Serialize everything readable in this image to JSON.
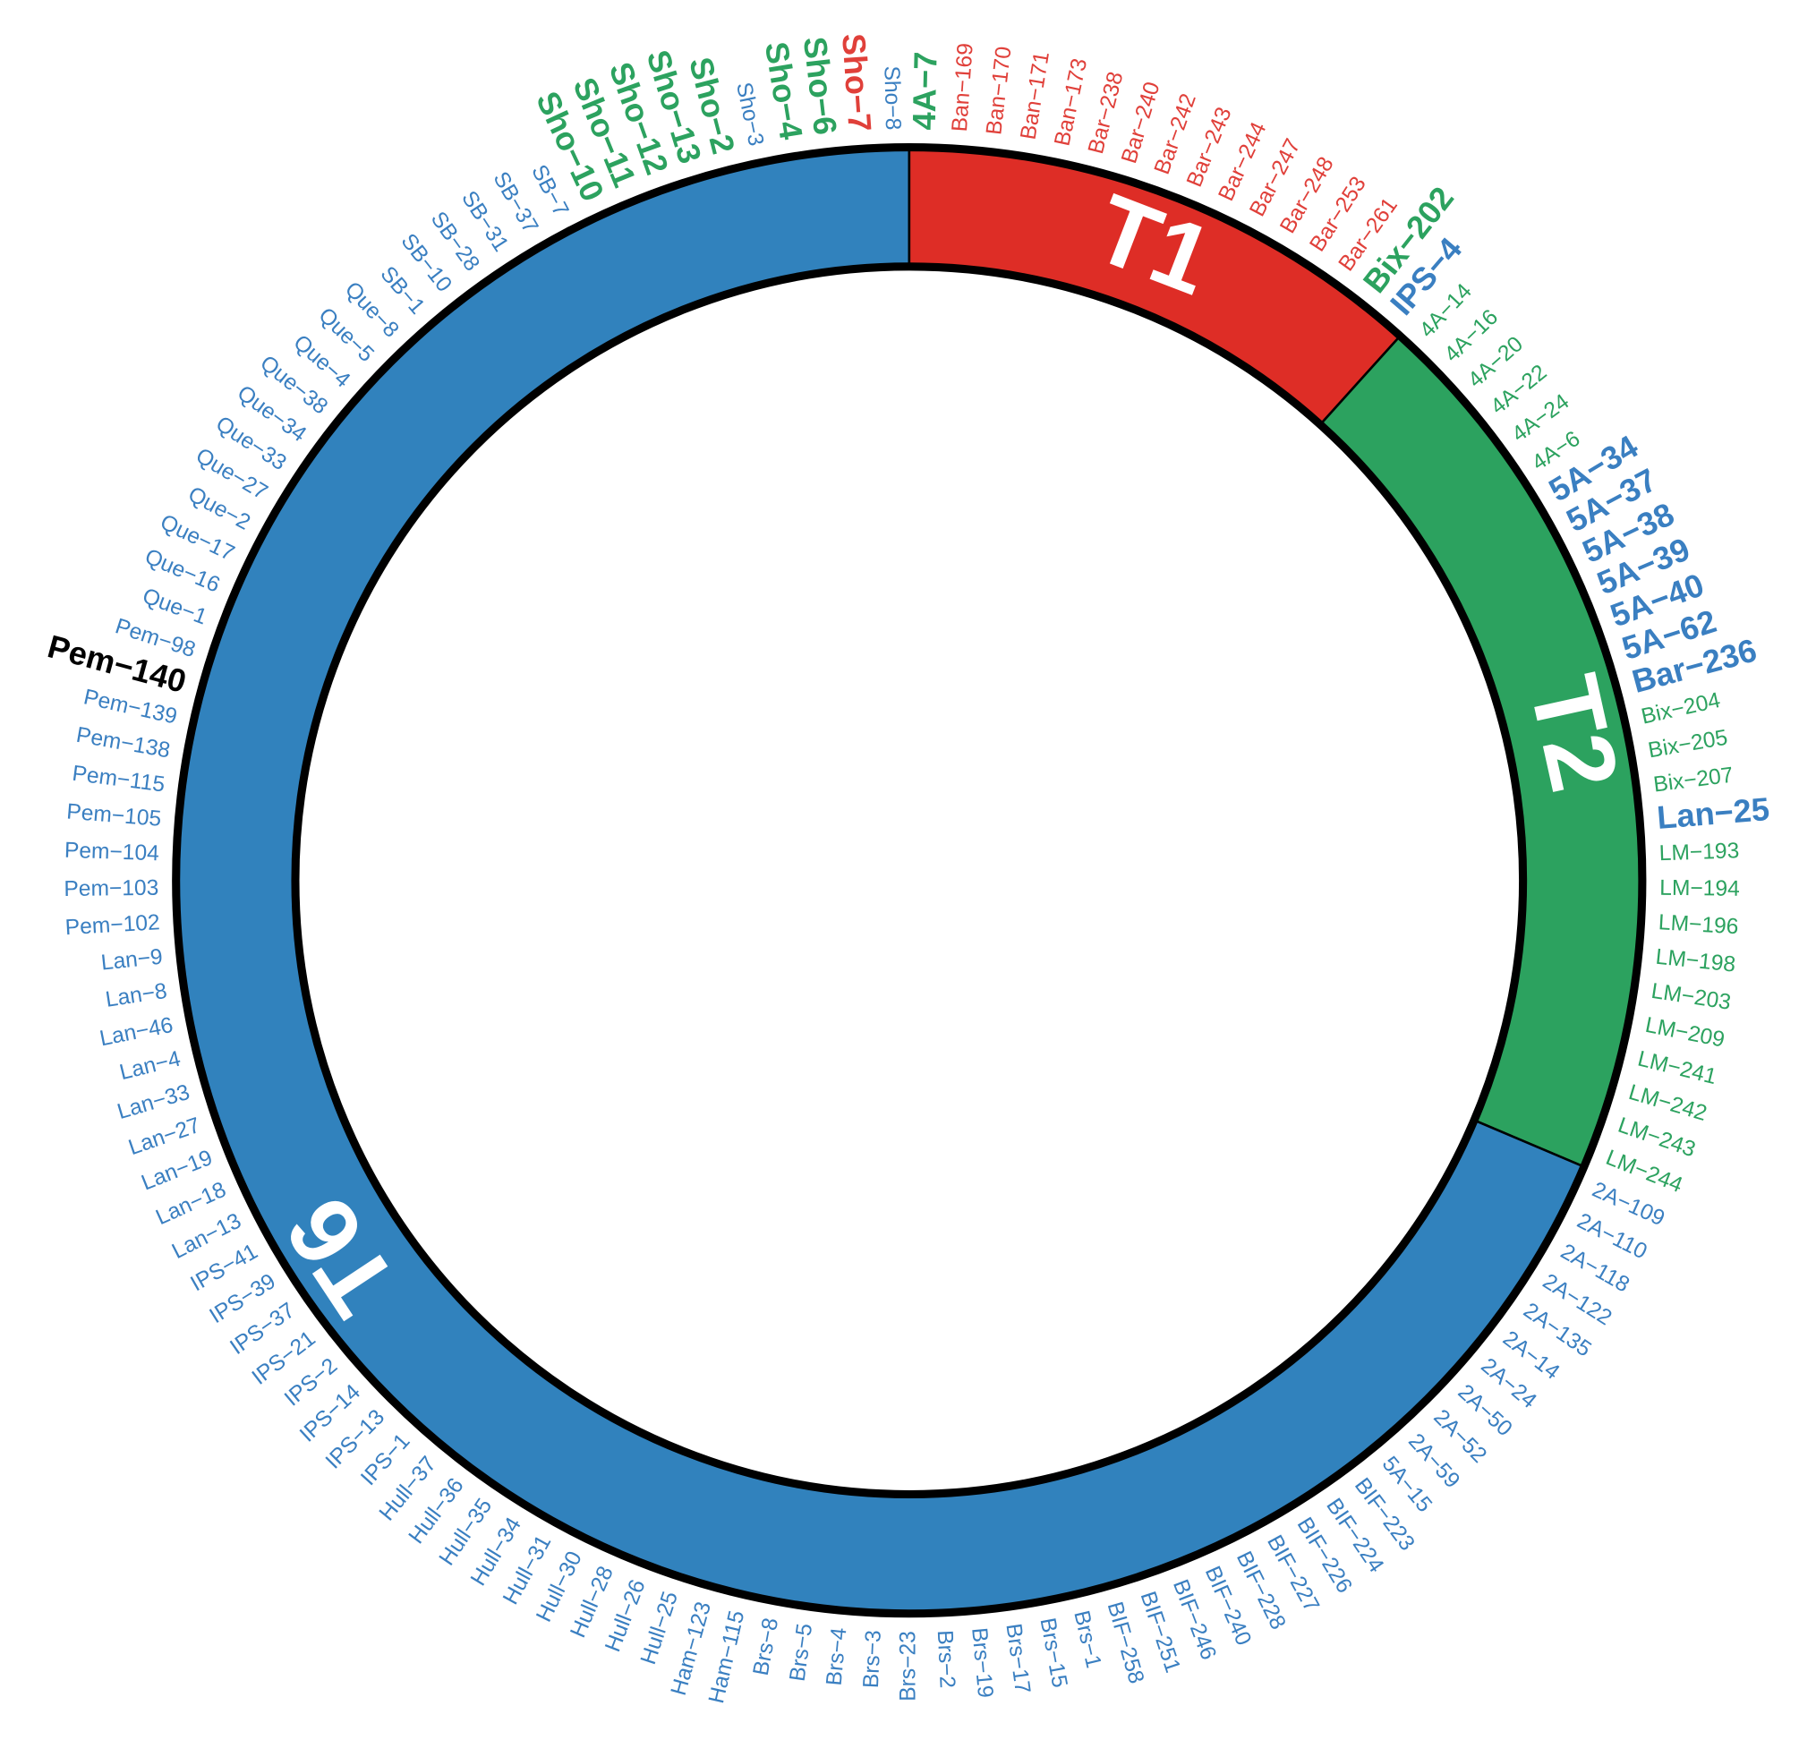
{
  "segments": [
    {
      "name": "T1",
      "color": "#de2d26",
      "leaves": [
        {
          "label": "4A−7",
          "color": "#2ca25f",
          "bold": true
        },
        {
          "label": "Ban−169",
          "color": "#e0403a"
        },
        {
          "label": "Ban−170",
          "color": "#e0403a"
        },
        {
          "label": "Ban−171",
          "color": "#e0403a"
        },
        {
          "label": "Ban−173",
          "color": "#e0403a"
        },
        {
          "label": "Bar−238",
          "color": "#e0403a"
        },
        {
          "label": "Bar−240",
          "color": "#e0403a"
        },
        {
          "label": "Bar−242",
          "color": "#e0403a"
        },
        {
          "label": "Bar−243",
          "color": "#e0403a"
        },
        {
          "label": "Bar−244",
          "color": "#e0403a"
        },
        {
          "label": "Bar−247",
          "color": "#e0403a"
        },
        {
          "label": "Bar−248",
          "color": "#e0403a"
        },
        {
          "label": "Bar−253",
          "color": "#e0403a"
        },
        {
          "label": "Bar−261",
          "color": "#e0403a"
        },
        {
          "label": "Bix−202",
          "color": "#2ca25f",
          "bold": true
        },
        {
          "label": "IPS−4",
          "color": "#3a7fc1",
          "bold": true
        }
      ]
    },
    {
      "name": "T2",
      "color": "#2ca25f",
      "leaves": [
        {
          "label": "4A−14",
          "color": "#2ca25f"
        },
        {
          "label": "4A−16",
          "color": "#2ca25f"
        },
        {
          "label": "4A−20",
          "color": "#2ca25f"
        },
        {
          "label": "4A−22",
          "color": "#2ca25f"
        },
        {
          "label": "4A−24",
          "color": "#2ca25f"
        },
        {
          "label": "4A−6",
          "color": "#2ca25f"
        },
        {
          "label": "5A−34",
          "color": "#3a7fc1",
          "bold": true
        },
        {
          "label": "5A−37",
          "color": "#3a7fc1",
          "bold": true
        },
        {
          "label": "5A−38",
          "color": "#3a7fc1",
          "bold": true
        },
        {
          "label": "5A−39",
          "color": "#3a7fc1",
          "bold": true
        },
        {
          "label": "5A−40",
          "color": "#3a7fc1",
          "bold": true
        },
        {
          "label": "5A−62",
          "color": "#3a7fc1",
          "bold": true
        },
        {
          "label": "Bar−236",
          "color": "#3a7fc1",
          "bold": true
        },
        {
          "label": "Bix−204",
          "color": "#2ca25f"
        },
        {
          "label": "Bix−205",
          "color": "#2ca25f"
        },
        {
          "label": "Bix−207",
          "color": "#2ca25f"
        },
        {
          "label": "Lan−25",
          "color": "#3a7fc1",
          "bold": true
        },
        {
          "label": "LM−193",
          "color": "#2ca25f"
        },
        {
          "label": "LM−194",
          "color": "#2ca25f"
        },
        {
          "label": "LM−196",
          "color": "#2ca25f"
        },
        {
          "label": "LM−198",
          "color": "#2ca25f"
        },
        {
          "label": "LM−203",
          "color": "#2ca25f"
        },
        {
          "label": "LM−209",
          "color": "#2ca25f"
        },
        {
          "label": "LM−241",
          "color": "#2ca25f"
        },
        {
          "label": "LM−242",
          "color": "#2ca25f"
        },
        {
          "label": "LM−243",
          "color": "#2ca25f"
        },
        {
          "label": "LM−244",
          "color": "#2ca25f"
        }
      ]
    },
    {
      "name": "T6",
      "color": "#3182bd",
      "leaves": [
        {
          "label": "2A−109",
          "color": "#3a7fc1"
        },
        {
          "label": "2A−110",
          "color": "#3a7fc1"
        },
        {
          "label": "2A−118",
          "color": "#3a7fc1"
        },
        {
          "label": "2A−122",
          "color": "#3a7fc1"
        },
        {
          "label": "2A−135",
          "color": "#3a7fc1"
        },
        {
          "label": "2A−14",
          "color": "#3a7fc1"
        },
        {
          "label": "2A−24",
          "color": "#3a7fc1"
        },
        {
          "label": "2A−50",
          "color": "#3a7fc1"
        },
        {
          "label": "2A−52",
          "color": "#3a7fc1"
        },
        {
          "label": "2A−59",
          "color": "#3a7fc1"
        },
        {
          "label": "5A−15",
          "color": "#3a7fc1"
        },
        {
          "label": "BIF−223",
          "color": "#3a7fc1"
        },
        {
          "label": "BIF−224",
          "color": "#3a7fc1"
        },
        {
          "label": "BIF−226",
          "color": "#3a7fc1"
        },
        {
          "label": "BIF−227",
          "color": "#3a7fc1"
        },
        {
          "label": "BIF−228",
          "color": "#3a7fc1"
        },
        {
          "label": "BIF−240",
          "color": "#3a7fc1"
        },
        {
          "label": "BIF−246",
          "color": "#3a7fc1"
        },
        {
          "label": "BIF−251",
          "color": "#3a7fc1"
        },
        {
          "label": "BIF−258",
          "color": "#3a7fc1"
        },
        {
          "label": "Brs−1",
          "color": "#3a7fc1"
        },
        {
          "label": "Brs−15",
          "color": "#3a7fc1"
        },
        {
          "label": "Brs−17",
          "color": "#3a7fc1"
        },
        {
          "label": "Brs−19",
          "color": "#3a7fc1"
        },
        {
          "label": "Brs−2",
          "color": "#3a7fc1"
        },
        {
          "label": "Brs−23",
          "color": "#3a7fc1"
        },
        {
          "label": "Brs−3",
          "color": "#3a7fc1"
        },
        {
          "label": "Brs−4",
          "color": "#3a7fc1"
        },
        {
          "label": "Brs−5",
          "color": "#3a7fc1"
        },
        {
          "label": "Brs−8",
          "color": "#3a7fc1"
        },
        {
          "label": "Ham−115",
          "color": "#3a7fc1"
        },
        {
          "label": "Ham−123",
          "color": "#3a7fc1"
        },
        {
          "label": "Hull−25",
          "color": "#3a7fc1"
        },
        {
          "label": "Hull−26",
          "color": "#3a7fc1"
        },
        {
          "label": "Hull−28",
          "color": "#3a7fc1"
        },
        {
          "label": "Hull−30",
          "color": "#3a7fc1"
        },
        {
          "label": "Hull−31",
          "color": "#3a7fc1"
        },
        {
          "label": "Hull−34",
          "color": "#3a7fc1"
        },
        {
          "label": "Hull−35",
          "color": "#3a7fc1"
        },
        {
          "label": "Hull−36",
          "color": "#3a7fc1"
        },
        {
          "label": "Hull−37",
          "color": "#3a7fc1"
        },
        {
          "label": "IPS−1",
          "color": "#3a7fc1"
        },
        {
          "label": "IPS−13",
          "color": "#3a7fc1"
        },
        {
          "label": "IPS−14",
          "color": "#3a7fc1"
        },
        {
          "label": "IPS−2",
          "color": "#3a7fc1"
        },
        {
          "label": "IPS−21",
          "color": "#3a7fc1"
        },
        {
          "label": "IPS−37",
          "color": "#3a7fc1"
        },
        {
          "label": "IPS−39",
          "color": "#3a7fc1"
        },
        {
          "label": "IPS−41",
          "color": "#3a7fc1"
        },
        {
          "label": "Lan−13",
          "color": "#3a7fc1"
        },
        {
          "label": "Lan−18",
          "color": "#3a7fc1"
        },
        {
          "label": "Lan−19",
          "color": "#3a7fc1"
        },
        {
          "label": "Lan−27",
          "color": "#3a7fc1"
        },
        {
          "label": "Lan−33",
          "color": "#3a7fc1"
        },
        {
          "label": "Lan−4",
          "color": "#3a7fc1"
        },
        {
          "label": "Lan−46",
          "color": "#3a7fc1"
        },
        {
          "label": "Lan−8",
          "color": "#3a7fc1"
        },
        {
          "label": "Lan−9",
          "color": "#3a7fc1"
        },
        {
          "label": "Pem−102",
          "color": "#3a7fc1"
        },
        {
          "label": "Pem−103",
          "color": "#3a7fc1"
        },
        {
          "label": "Pem−104",
          "color": "#3a7fc1"
        },
        {
          "label": "Pem−105",
          "color": "#3a7fc1"
        },
        {
          "label": "Pem−115",
          "color": "#3a7fc1"
        },
        {
          "label": "Pem−138",
          "color": "#3a7fc1"
        },
        {
          "label": "Pem−139",
          "color": "#3a7fc1"
        },
        {
          "label": "Pem−140",
          "color": "#000000",
          "bold": true
        },
        {
          "label": "Pem−98",
          "color": "#3a7fc1"
        },
        {
          "label": "Que−1",
          "color": "#3a7fc1"
        },
        {
          "label": "Que−16",
          "color": "#3a7fc1"
        },
        {
          "label": "Que−17",
          "color": "#3a7fc1"
        },
        {
          "label": "Que−2",
          "color": "#3a7fc1"
        },
        {
          "label": "Que−27",
          "color": "#3a7fc1"
        },
        {
          "label": "Que−33",
          "color": "#3a7fc1"
        },
        {
          "label": "Que−34",
          "color": "#3a7fc1"
        },
        {
          "label": "Que−38",
          "color": "#3a7fc1"
        },
        {
          "label": "Que−4",
          "color": "#3a7fc1"
        },
        {
          "label": "Que−5",
          "color": "#3a7fc1"
        },
        {
          "label": "Que−8",
          "color": "#3a7fc1"
        },
        {
          "label": "SB−1",
          "color": "#3a7fc1"
        },
        {
          "label": "SB−10",
          "color": "#3a7fc1"
        },
        {
          "label": "SB−28",
          "color": "#3a7fc1"
        },
        {
          "label": "SB−31",
          "color": "#3a7fc1"
        },
        {
          "label": "SB−37",
          "color": "#3a7fc1"
        },
        {
          "label": "SB−7",
          "color": "#3a7fc1"
        },
        {
          "label": "Sho−10",
          "color": "#2ca25f",
          "bold": true
        },
        {
          "label": "Sho−11",
          "color": "#2ca25f",
          "bold": true
        },
        {
          "label": "Sho−12",
          "color": "#2ca25f",
          "bold": true
        },
        {
          "label": "Sho−13",
          "color": "#2ca25f",
          "bold": true
        },
        {
          "label": "Sho−2",
          "color": "#2ca25f",
          "bold": true
        },
        {
          "label": "Sho−3",
          "color": "#3a7fc1"
        },
        {
          "label": "Sho−4",
          "color": "#2ca25f",
          "bold": true
        },
        {
          "label": "Sho−6",
          "color": "#2ca25f",
          "bold": true
        },
        {
          "label": "Sho−7",
          "color": "#e0403a",
          "bold": true
        },
        {
          "label": "Sho−8",
          "color": "#3a7fc1"
        }
      ]
    }
  ]
}
